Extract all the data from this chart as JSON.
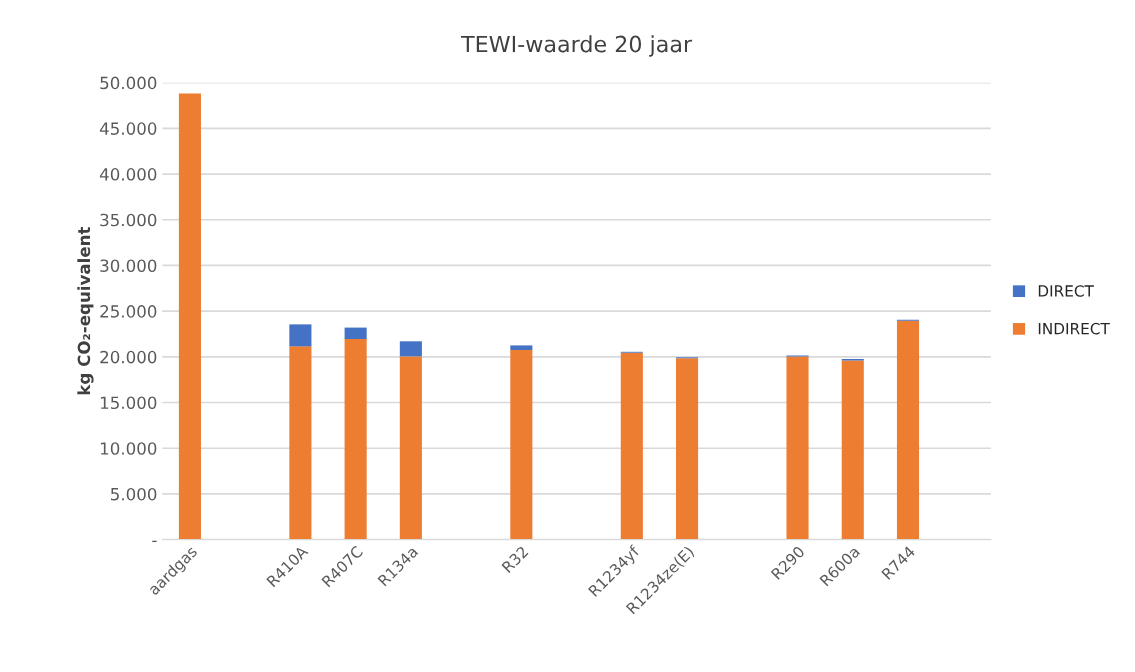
{
  "chart_data": {
    "type": "bar",
    "title": "TEWI-waarde 20 jaar",
    "ylabel": "kg CO₂-equivalent",
    "categories": [
      "aardgas",
      null,
      "R410A",
      "R407C",
      "R134a",
      null,
      "R32",
      null,
      "R1234yf",
      "R1234ze(E)",
      null,
      "R290",
      "R600a",
      "R744",
      null
    ],
    "stacked": true,
    "series": [
      {
        "name": "INDIRECT",
        "color": "#ed7d31",
        "values": [
          48800,
          null,
          21150,
          21950,
          20050,
          null,
          20750,
          null,
          20450,
          19850,
          null,
          20050,
          19600,
          23950,
          null
        ]
      },
      {
        "name": "DIRECT",
        "color": "#4472c4",
        "values": [
          null,
          null,
          2400,
          1250,
          1650,
          null,
          500,
          null,
          100,
          100,
          null,
          100,
          150,
          100,
          null
        ]
      }
    ],
    "ylim": [
      0,
      50000
    ],
    "yticks": [
      {
        "value": 0,
        "label": "-"
      },
      {
        "value": 5000,
        "label": "5.000"
      },
      {
        "value": 10000,
        "label": "10.000"
      },
      {
        "value": 15000,
        "label": "15.000"
      },
      {
        "value": 20000,
        "label": "20.000"
      },
      {
        "value": 25000,
        "label": "25.000"
      },
      {
        "value": 30000,
        "label": "30.000"
      },
      {
        "value": 35000,
        "label": "35.000"
      },
      {
        "value": 40000,
        "label": "40.000"
      },
      {
        "value": 45000,
        "label": "45.000"
      },
      {
        "value": 50000,
        "label": "50.000"
      }
    ],
    "grid": "y",
    "legend": "right"
  }
}
